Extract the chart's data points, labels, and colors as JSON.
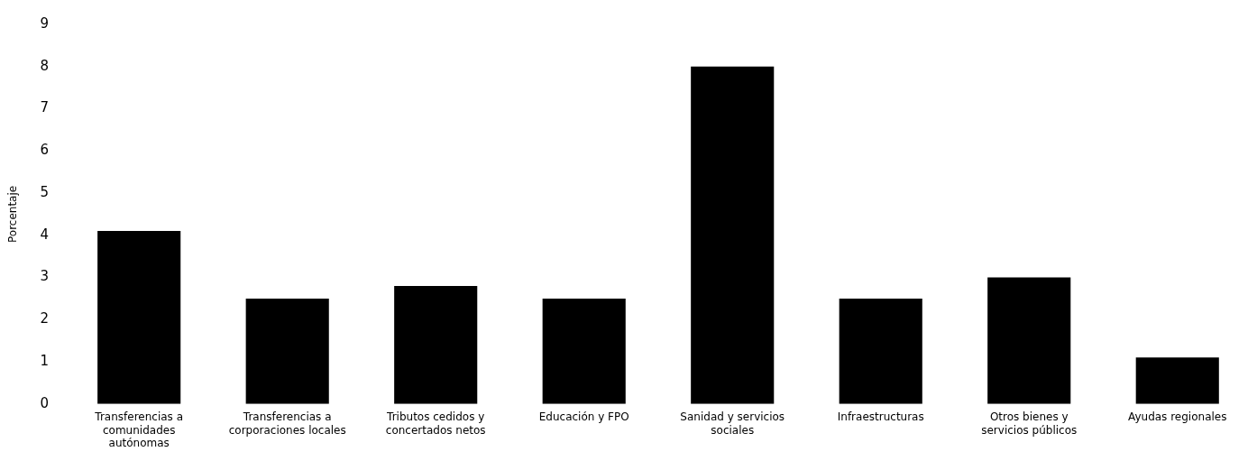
{
  "chart_data": {
    "type": "bar",
    "ylabel": "Porcentaje",
    "categories": [
      "Transferencias a comunidades autónomas",
      "Transferencias a corporaciones locales",
      "Tributos cedidos y concertados netos",
      "Educación y FPO",
      "Sanidad y servicios sociales",
      "Infraestructuras",
      "Otros bienes y servicios públicos",
      "Ayudas regionales"
    ],
    "values": [
      4.1,
      2.5,
      2.8,
      2.5,
      8.0,
      2.5,
      3.0,
      1.1
    ],
    "color": "#000000",
    "ylim": [
      0,
      9
    ],
    "yticks": [
      0,
      1,
      2,
      3,
      4,
      5,
      6,
      7,
      8,
      9
    ],
    "grid": false,
    "legend": false
  }
}
